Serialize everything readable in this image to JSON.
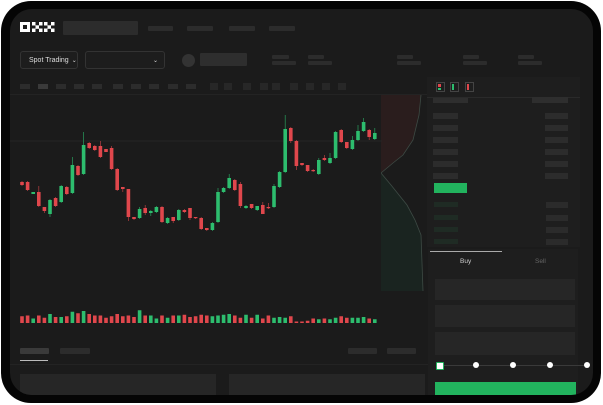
{
  "header": {
    "logo": "OKX",
    "market_selector": {
      "label": "Spot Trading",
      "icon": "chevron-down-icon"
    },
    "pair_selector": {
      "icon": "chevron-down-icon"
    }
  },
  "order_panel": {
    "tabs": [
      {
        "label": "Buy",
        "active": true
      },
      {
        "label": "Sell",
        "active": false
      }
    ],
    "slider": {
      "value_percent": 0,
      "stops": [
        0,
        25,
        50,
        75,
        100
      ]
    },
    "submit_color": "#22b35e"
  },
  "colors": {
    "up": "#2dbd6e",
    "down": "#e0474c",
    "background": "#1b1b1b"
  },
  "chart_data": {
    "type": "candlestick",
    "candles": [
      [
        68,
        65,
        69,
        64
      ],
      [
        68,
        60,
        69,
        59
      ],
      [
        56,
        58,
        58,
        56
      ],
      [
        58,
        44,
        64,
        43
      ],
      [
        43,
        39,
        43,
        37
      ],
      [
        36,
        50,
        51,
        33
      ],
      [
        52,
        44,
        53,
        43
      ],
      [
        48,
        64,
        65,
        47
      ],
      [
        63,
        56,
        64,
        55
      ],
      [
        57,
        85,
        93,
        56
      ],
      [
        84,
        75,
        85,
        74
      ],
      [
        76,
        105,
        118,
        75
      ],
      [
        107,
        102,
        108,
        101
      ],
      [
        104,
        100,
        105,
        99
      ],
      [
        104,
        93,
        109,
        92
      ],
      [
        101,
        98,
        101,
        98
      ],
      [
        102,
        81,
        104,
        80
      ],
      [
        81,
        60,
        82,
        59
      ],
      [
        63,
        61,
        63,
        58
      ],
      [
        61,
        33,
        61,
        29
      ],
      [
        33,
        31,
        33,
        30
      ],
      [
        32,
        41,
        43,
        31
      ],
      [
        42,
        37,
        45,
        35
      ],
      [
        37,
        39,
        40,
        34
      ],
      [
        38,
        43,
        44,
        37
      ],
      [
        43,
        28,
        44,
        27
      ],
      [
        27,
        32,
        33,
        26
      ],
      [
        33,
        29,
        33,
        27
      ],
      [
        30,
        40,
        41,
        29
      ],
      [
        40,
        38,
        41,
        37
      ],
      [
        42,
        32,
        42,
        30
      ],
      [
        33,
        32,
        33,
        31
      ],
      [
        32,
        21,
        33,
        20
      ],
      [
        22,
        20,
        22,
        19
      ],
      [
        20,
        27,
        28,
        19
      ],
      [
        28,
        58,
        62,
        27
      ],
      [
        58,
        62,
        63,
        57
      ],
      [
        62,
        72,
        76,
        61
      ],
      [
        70,
        60,
        71,
        59
      ],
      [
        66,
        44,
        68,
        42
      ],
      [
        42,
        44,
        45,
        41
      ],
      [
        46,
        42,
        46,
        41
      ],
      [
        40,
        44,
        44,
        39
      ],
      [
        45,
        36,
        48,
        36
      ],
      [
        43,
        42,
        47,
        41
      ],
      [
        43,
        64,
        66,
        42
      ],
      [
        63,
        78,
        79,
        62
      ],
      [
        78,
        121,
        135,
        77
      ],
      [
        122,
        109,
        123,
        107
      ],
      [
        109,
        84,
        110,
        80
      ],
      [
        87,
        85,
        87,
        84
      ],
      [
        85,
        79,
        85,
        78
      ],
      [
        80,
        79,
        81,
        78
      ],
      [
        76,
        90,
        92,
        75
      ],
      [
        92,
        90,
        95,
        89
      ],
      [
        87,
        92,
        97,
        86
      ],
      [
        92,
        118,
        119,
        91
      ],
      [
        120,
        108,
        121,
        107
      ],
      [
        108,
        102,
        108,
        101
      ],
      [
        101,
        110,
        114,
        100
      ],
      [
        110,
        119,
        125,
        109
      ],
      [
        119,
        128,
        132,
        118
      ],
      [
        120,
        113,
        121,
        110
      ],
      [
        111,
        117,
        122,
        110
      ]
    ],
    "volume": [
      9,
      10,
      6,
      10,
      7,
      12,
      8,
      8,
      9,
      15,
      13,
      16,
      12,
      10,
      10,
      7,
      9,
      12,
      9,
      10,
      8,
      17,
      10,
      10,
      6,
      10,
      7,
      10,
      10,
      11,
      8,
      9,
      11,
      10,
      9,
      10,
      11,
      12,
      10,
      7,
      11,
      7,
      11,
      6,
      10,
      7,
      8,
      7,
      9,
      2,
      2,
      3,
      6,
      5,
      6,
      5,
      7,
      9,
      7,
      7,
      7,
      8,
      6,
      5
    ]
  }
}
